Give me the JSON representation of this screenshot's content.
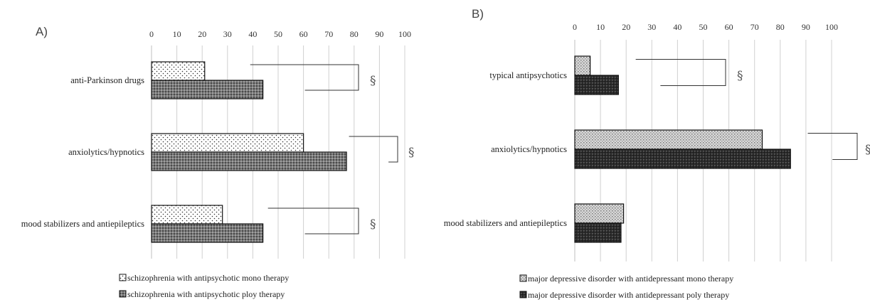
{
  "chart_data": [
    {
      "panel": "A)",
      "type": "bar",
      "orientation": "horizontal",
      "categories": [
        "anti-Parkinson drugs",
        "anxiolytics/hypnotics",
        "mood stabilizers and antiepileptics"
      ],
      "series": [
        {
          "name": "schizophrenia with antipsychotic mono therapy",
          "values": [
            21,
            60,
            28
          ],
          "pattern": "dots-light"
        },
        {
          "name": "schizophrenia with antipsychotic ploy therapy",
          "values": [
            44,
            77,
            44
          ],
          "pattern": "grid-dark"
        }
      ],
      "xlim": [
        0,
        100
      ],
      "xticks": [
        "0",
        "10",
        "20",
        "30",
        "40",
        "50",
        "60",
        "70",
        "80",
        "90",
        "100"
      ],
      "grid": true,
      "legend_placement": "bottom",
      "significance": [
        {
          "category": 0,
          "symbol": "§"
        },
        {
          "category": 1,
          "symbol": "§"
        },
        {
          "category": 2,
          "symbol": "§"
        }
      ]
    },
    {
      "panel": "B)",
      "type": "bar",
      "orientation": "horizontal",
      "categories": [
        "typical antipsychotics",
        "anxiolytics/hypnotics",
        "mood stabilizers and antiepileptics"
      ],
      "series": [
        {
          "name": "major depressive disorder with antidepressant mono therapy",
          "values": [
            6,
            73,
            19
          ],
          "pattern": "dense-light"
        },
        {
          "name": "major depressive disorder with antidepressant poly therapy",
          "values": [
            17,
            84,
            18
          ],
          "pattern": "dense-dark"
        }
      ],
      "xlim": [
        0,
        100
      ],
      "xticks": [
        "0",
        "10",
        "20",
        "30",
        "40",
        "50",
        "60",
        "70",
        "80",
        "90",
        "100"
      ],
      "grid": true,
      "legend_placement": "bottom",
      "significance": [
        {
          "category": 0,
          "symbol": "§"
        },
        {
          "category": 1,
          "symbol": "§"
        }
      ]
    }
  ]
}
